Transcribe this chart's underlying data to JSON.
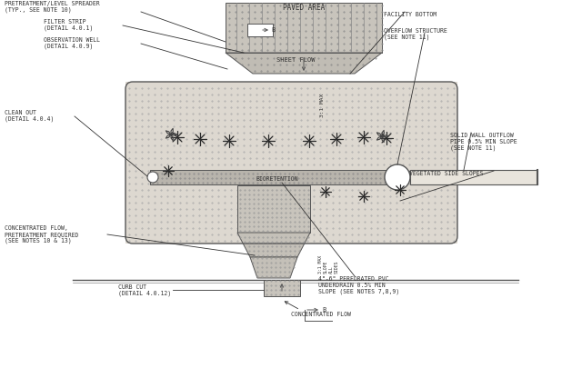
{
  "title_top": "PAVED AREA",
  "label_pretreat": "PRETREATMENT/LEVEL SPREADER\n(TYP., SEE NOTE 10)",
  "label_filter": "FILTER STRIP\n(DETAIL 4.0.1)",
  "label_obs": "OBSERVATION WELL\n(DETAIL 4.0.9)",
  "label_cleanout": "CLEAN OUT\n(DETAIL 4.0.4)",
  "label_facility": "FACILITY BOTTOM",
  "label_overflow": "OVERFLOW STRUCTURE\n(SEE NOTE 11)",
  "label_solid_pipe": "SOLID WALL OUTFLOW\nPIPE 0.5% MIN SLOPE\n(SEE NOTE 11)",
  "label_veg_slopes": "VEGETATED SIDE SLOPES",
  "label_conc_flow_left": "CONCENTRATED FLOW,\nPRETREATMENT REQUIRED\n(SEE NOTES 10 & 13)",
  "label_curb": "CURB CUT\n(DETAIL 4.0.12)",
  "label_conc_flow_center": "CONCENTRATED FLOW",
  "label_pvc": "4\"-6\" PERFORATED PVC\nUNDERDRAIN 0.5% MIN\nSLOPE (SEE NOTES 7,8,9)",
  "label_sheet_flow": "SHEET FLOW",
  "label_bioretention": "BIORETENTION",
  "label_31max": "3:1 MAX",
  "label_31max_slope": "3:1 MAX\nSLOPE\nALL\nSIDES",
  "lc": "#555555",
  "dot_color": "#aaaaaa",
  "paved_color": "#c8c4bc",
  "basin_color": "#ddd8d0",
  "forebay_color": "#c0bcb4",
  "pipe_strip_color": "#b8b4ac",
  "text_color": "#333333"
}
